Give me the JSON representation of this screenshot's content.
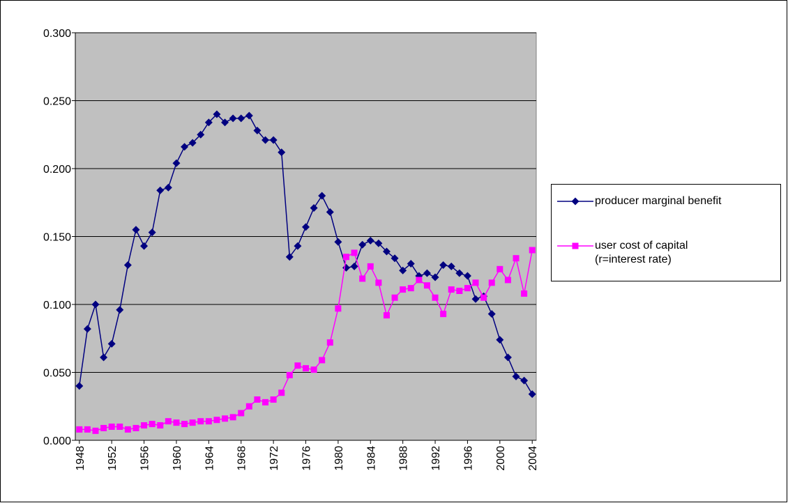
{
  "chart_data": {
    "type": "line",
    "x": [
      1948,
      1949,
      1950,
      1951,
      1952,
      1953,
      1954,
      1955,
      1956,
      1957,
      1958,
      1959,
      1960,
      1961,
      1962,
      1963,
      1964,
      1965,
      1966,
      1967,
      1968,
      1969,
      1970,
      1971,
      1972,
      1973,
      1974,
      1975,
      1976,
      1977,
      1978,
      1979,
      1980,
      1981,
      1982,
      1983,
      1984,
      1985,
      1986,
      1987,
      1988,
      1989,
      1990,
      1991,
      1992,
      1993,
      1994,
      1995,
      1996,
      1997,
      1998,
      1999,
      2000,
      2001,
      2002,
      2003,
      2004
    ],
    "xlim": [
      1947.5,
      2004.5
    ],
    "xticks": [
      1948,
      1952,
      1956,
      1960,
      1964,
      1968,
      1972,
      1976,
      1980,
      1984,
      1988,
      1992,
      1996,
      2000,
      2004
    ],
    "ylim": [
      0,
      0.3
    ],
    "yticks": [
      {
        "value": 0,
        "label": "0.000"
      },
      {
        "value": 0.05,
        "label": "0.050"
      },
      {
        "value": 0.1,
        "label": "0.100"
      },
      {
        "value": 0.15,
        "label": "0.150"
      },
      {
        "value": 0.2,
        "label": "0.200"
      },
      {
        "value": 0.25,
        "label": "0.250"
      },
      {
        "value": 0.3,
        "label": "0.300"
      }
    ],
    "grid": true,
    "legend": "right",
    "series": [
      {
        "name": "producer marginal benefit",
        "color": "#000080",
        "marker": "diamond",
        "values": [
          0.04,
          0.082,
          0.1,
          0.061,
          0.071,
          0.096,
          0.129,
          0.155,
          0.143,
          0.153,
          0.184,
          0.186,
          0.204,
          0.216,
          0.219,
          0.225,
          0.234,
          0.24,
          0.234,
          0.237,
          0.237,
          0.239,
          0.228,
          0.221,
          0.221,
          0.212,
          0.135,
          0.143,
          0.157,
          0.171,
          0.18,
          0.168,
          0.146,
          0.127,
          0.128,
          0.144,
          0.147,
          0.145,
          0.139,
          0.134,
          0.125,
          0.13,
          0.121,
          0.123,
          0.12,
          0.129,
          0.128,
          0.123,
          0.121,
          0.104,
          0.106,
          0.093,
          0.074,
          0.061,
          0.047,
          0.044,
          0.034
        ]
      },
      {
        "name": "user cost of capital (r=interest rate)",
        "color": "#ff00ff",
        "marker": "square",
        "values": [
          0.008,
          0.008,
          0.007,
          0.009,
          0.01,
          0.01,
          0.008,
          0.009,
          0.011,
          0.012,
          0.011,
          0.014,
          0.013,
          0.012,
          0.013,
          0.014,
          0.014,
          0.015,
          0.016,
          0.017,
          0.02,
          0.025,
          0.03,
          0.028,
          0.03,
          0.035,
          0.048,
          0.055,
          0.053,
          0.052,
          0.059,
          0.072,
          0.097,
          0.135,
          0.138,
          0.119,
          0.128,
          0.116,
          0.092,
          0.105,
          0.111,
          0.112,
          0.118,
          0.114,
          0.105,
          0.093,
          0.111,
          0.11,
          0.112,
          0.116,
          0.105,
          0.116,
          0.126,
          0.118,
          0.134,
          0.108,
          0.14
        ]
      }
    ]
  }
}
